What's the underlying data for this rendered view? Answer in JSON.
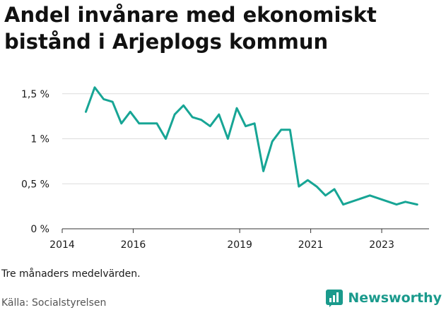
{
  "title": "Andel invånare med ekonomiskt bistånd i Arjeplogs kommun",
  "note": "Tre månaders medelvärden.",
  "source": "Källa: Socialstyrelsen",
  "brand": {
    "name": "Newsworthy",
    "color": "#1a9a8c"
  },
  "chart_data": {
    "type": "line",
    "xlabel": "",
    "ylabel": "",
    "ylim": [
      0,
      1.6
    ],
    "yticks": [
      0,
      0.5,
      1,
      1.5
    ],
    "ytick_labels": [
      "0 %",
      "0,5 %",
      "1 %",
      "1,5 %"
    ],
    "xticks": [
      2014,
      2016,
      2019,
      2021,
      2023
    ],
    "grid": true,
    "series": [
      {
        "color": "#17a595",
        "points": [
          [
            "2014-09",
            1.3
          ],
          [
            "2014-12",
            1.57
          ],
          [
            "2015-03",
            1.44
          ],
          [
            "2015-06",
            1.41
          ],
          [
            "2015-09",
            1.17
          ],
          [
            "2015-12",
            1.3
          ],
          [
            "2016-03",
            1.17
          ],
          [
            "2016-06",
            1.17
          ],
          [
            "2016-09",
            1.17
          ],
          [
            "2016-12",
            1.0
          ],
          [
            "2017-03",
            1.27
          ],
          [
            "2017-06",
            1.37
          ],
          [
            "2017-09",
            1.24
          ],
          [
            "2017-12",
            1.21
          ],
          [
            "2018-03",
            1.14
          ],
          [
            "2018-06",
            1.27
          ],
          [
            "2018-09",
            1.0
          ],
          [
            "2018-12",
            1.34
          ],
          [
            "2019-03",
            1.14
          ],
          [
            "2019-06",
            1.17
          ],
          [
            "2019-09",
            0.64
          ],
          [
            "2019-12",
            0.97
          ],
          [
            "2020-03",
            1.1
          ],
          [
            "2020-06",
            1.1
          ],
          [
            "2020-09",
            0.47
          ],
          [
            "2020-12",
            0.54
          ],
          [
            "2021-03",
            0.47
          ],
          [
            "2021-06",
            0.37
          ],
          [
            "2021-09",
            0.44
          ],
          [
            "2021-12",
            0.27
          ],
          [
            "2022-09",
            0.37
          ],
          [
            "2023-06",
            0.27
          ],
          [
            "2023-09",
            0.3
          ],
          [
            "2024-01",
            0.27
          ]
        ]
      }
    ]
  }
}
